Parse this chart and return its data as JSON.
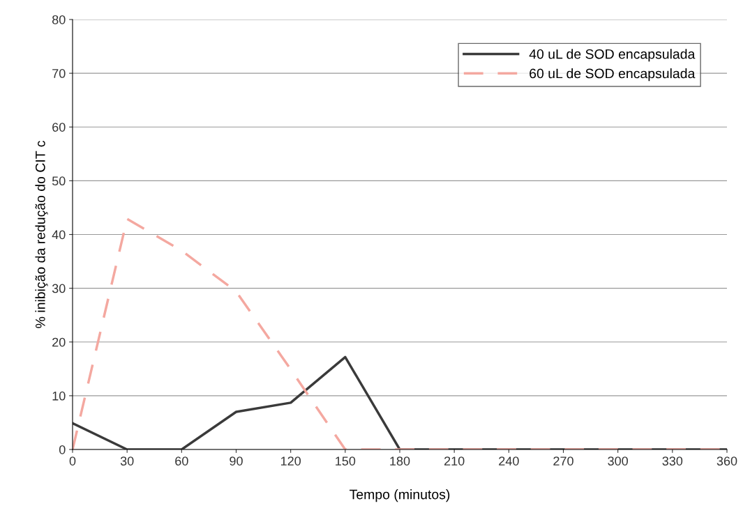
{
  "chart_data": {
    "type": "line",
    "xlabel": "Tempo (minutos)",
    "ylabel": "% inibição da redução do CIT c",
    "x": [
      0,
      30,
      60,
      90,
      120,
      150,
      180,
      210,
      240,
      270,
      300,
      330,
      360
    ],
    "series": [
      {
        "name": "40 uL de SOD encapsulada",
        "color": "#3a3a3a",
        "line_style": "solid",
        "values": [
          4.9,
          0,
          0,
          7.0,
          8.7,
          17.2,
          0,
          0,
          0,
          0,
          0,
          0,
          0
        ]
      },
      {
        "name": "60 uL de SOD encapsulada",
        "color": "#f4a8a0",
        "line_style": "dashed",
        "values": [
          0,
          42.9,
          37,
          29.4,
          14.9,
          0,
          0,
          0,
          0,
          0,
          0,
          0,
          0
        ]
      }
    ],
    "xlim": [
      0,
      360
    ],
    "xticks": [
      0,
      30,
      60,
      90,
      120,
      150,
      180,
      210,
      240,
      270,
      300,
      330,
      360
    ],
    "ylim": [
      0,
      80
    ],
    "yticks": [
      0,
      10,
      20,
      30,
      40,
      50,
      60,
      70,
      80
    ],
    "grid": "y",
    "legend": "top right",
    "marker": "none"
  }
}
